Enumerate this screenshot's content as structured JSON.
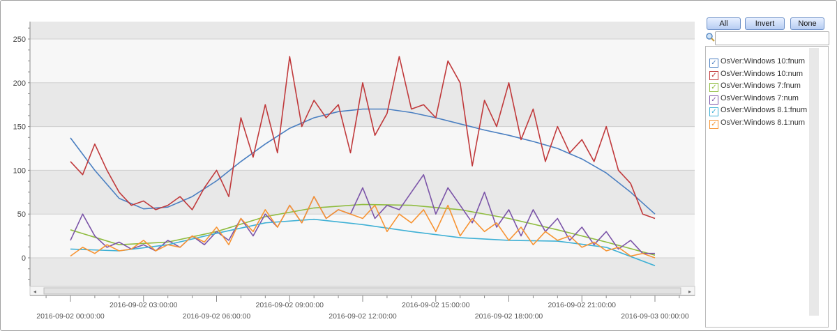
{
  "chart_data": {
    "type": "line",
    "x_start": "2016-09-02 00:00:00",
    "x_step_hours": 0.5,
    "x_tick_labels": [
      "2016-09-02 00:00:00",
      "2016-09-02 03:00:00",
      "2016-09-02 06:00:00",
      "2016-09-02 09:00:00",
      "2016-09-02 12:00:00",
      "2016-09-02 15:00:00",
      "2016-09-02 18:00:00",
      "2016-09-02 21:00:00",
      "2016-09-03 00:00:00"
    ],
    "y_ticks": [
      0,
      50,
      100,
      150,
      200,
      250
    ],
    "ylim": [
      -33,
      270
    ],
    "grid": "horizontal bands",
    "legend": "right",
    "series": [
      {
        "name": "OsVer:Windows 10:fnum",
        "color": "#4a7fc1",
        "step_hours": 1,
        "values": [
          137,
          100,
          68,
          56,
          58,
          70,
          88,
          110,
          130,
          148,
          160,
          167,
          170,
          170,
          166,
          160,
          153,
          146,
          140,
          133,
          125,
          113,
          97,
          75,
          50
        ]
      },
      {
        "name": "OsVer:Windows 10:num",
        "color": "#c0393b",
        "step_hours": 0.5,
        "values": [
          110,
          95,
          130,
          100,
          75,
          60,
          65,
          55,
          60,
          70,
          55,
          80,
          100,
          70,
          160,
          115,
          175,
          120,
          230,
          150,
          180,
          160,
          175,
          120,
          200,
          140,
          165,
          230,
          170,
          175,
          160,
          225,
          200,
          105,
          180,
          150,
          200,
          135,
          170,
          110,
          150,
          120,
          135,
          110,
          150,
          100,
          85,
          50,
          45
        ]
      },
      {
        "name": "OsVer:Windows 7:fnum",
        "color": "#8fbc3f",
        "step_hours": 2,
        "values": [
          32,
          15,
          18,
          30,
          47,
          57,
          61,
          60,
          55,
          45,
          32,
          18,
          3
        ]
      },
      {
        "name": "OsVer:Windows 7:num",
        "color": "#7b54a8",
        "step_hours": 0.5,
        "values": [
          20,
          50,
          25,
          12,
          18,
          10,
          15,
          8,
          20,
          12,
          25,
          15,
          30,
          20,
          45,
          25,
          50,
          35,
          60,
          40,
          70,
          45,
          55,
          50,
          80,
          45,
          60,
          55,
          75,
          95,
          50,
          80,
          60,
          40,
          75,
          35,
          55,
          25,
          55,
          30,
          45,
          20,
          35,
          15,
          30,
          10,
          20,
          5,
          5
        ]
      },
      {
        "name": "OsVer:Windows 8.1:fnum",
        "color": "#3eb0d5",
        "step_hours": 2,
        "values": [
          10,
          8,
          15,
          28,
          40,
          44,
          38,
          30,
          23,
          20,
          19,
          12,
          -9
        ]
      },
      {
        "name": "OsVer:Windows 8.1:num",
        "color": "#f79433",
        "step_hours": 0.5,
        "values": [
          2,
          12,
          5,
          15,
          8,
          10,
          20,
          8,
          15,
          12,
          25,
          18,
          35,
          15,
          45,
          30,
          55,
          35,
          60,
          40,
          70,
          45,
          55,
          50,
          45,
          60,
          30,
          50,
          40,
          55,
          30,
          60,
          25,
          45,
          30,
          40,
          20,
          35,
          15,
          30,
          20,
          25,
          12,
          18,
          8,
          12,
          2,
          5,
          0
        ]
      }
    ]
  },
  "panel": {
    "all_label": "All",
    "invert_label": "Invert",
    "none_label": "None",
    "search_value": "",
    "search_placeholder": ""
  }
}
